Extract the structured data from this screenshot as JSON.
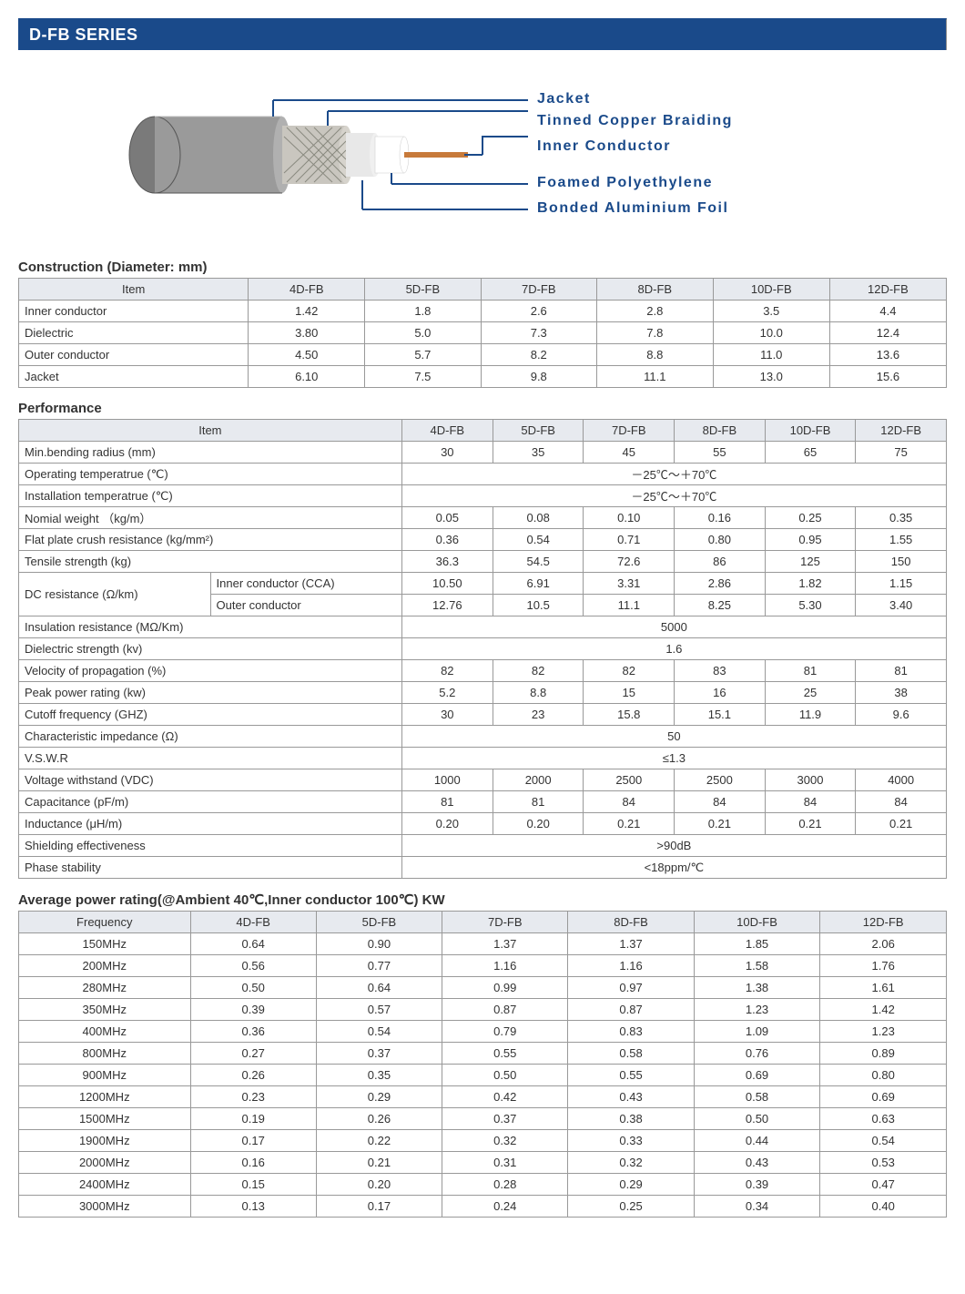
{
  "banner": "D-FB SERIES",
  "diagram": {
    "labels": {
      "jacket": "Jacket",
      "braid": "Tinned Copper Braiding",
      "inner": "Inner Conductor",
      "foam": "Foamed Polyethylene",
      "foil": "Bonded Aluminium Foil"
    },
    "colors": {
      "jacket_outer": "#9a9a9a",
      "jacket_face": "#7a7a7a",
      "braid": "#c9c6bf",
      "foil": "#e8e8e8",
      "foam": "#ffffff",
      "conductor": "#c77a3a",
      "label": "#1a4a8a"
    }
  },
  "construction": {
    "title": "Construction (Diameter: mm)",
    "header": [
      "Item",
      "4D-FB",
      "5D-FB",
      "7D-FB",
      "8D-FB",
      "10D-FB",
      "12D-FB"
    ],
    "rows": [
      {
        "item": "Inner conductor",
        "v": [
          "1.42",
          "1.8",
          "2.6",
          "2.8",
          "3.5",
          "4.4"
        ]
      },
      {
        "item": "Dielectric",
        "v": [
          "3.80",
          "5.0",
          "7.3",
          "7.8",
          "10.0",
          "12.4"
        ]
      },
      {
        "item": "Outer conductor",
        "v": [
          "4.50",
          "5.7",
          "8.2",
          "8.8",
          "11.0",
          "13.6"
        ]
      },
      {
        "item": "Jacket",
        "v": [
          "6.10",
          "7.5",
          "9.8",
          "11.1",
          "13.0",
          "15.6"
        ]
      }
    ]
  },
  "performance": {
    "title": "Performance",
    "header": [
      "Item",
      "4D-FB",
      "5D-FB",
      "7D-FB",
      "8D-FB",
      "10D-FB",
      "12D-FB"
    ],
    "rows": [
      {
        "item": "Min.bending radius (mm)",
        "sub": "",
        "v": [
          "30",
          "35",
          "45",
          "55",
          "65",
          "75"
        ]
      },
      {
        "item": "Operating temperatrue (℃)",
        "sub": "",
        "span": "－25℃～＋70℃"
      },
      {
        "item": "Installation temperatrue (℃)",
        "sub": "",
        "span": "－25℃～＋70℃"
      },
      {
        "item": "Nomial weight （kg/m）",
        "sub": "",
        "v": [
          "0.05",
          "0.08",
          "0.10",
          "0.16",
          "0.25",
          "0.35"
        ]
      },
      {
        "item": "Flat plate crush resistance (kg/mm²)",
        "sub": "",
        "v": [
          "0.36",
          "0.54",
          "0.71",
          "0.80",
          "0.95",
          "1.55"
        ]
      },
      {
        "item": "Tensile strength (kg)",
        "sub": "",
        "v": [
          "36.3",
          "54.5",
          "72.6",
          "86",
          "125",
          "150"
        ]
      },
      {
        "item": "DC resistance (Ω/km)",
        "sub": "Inner conductor (CCA)",
        "v": [
          "10.50",
          "6.91",
          "3.31",
          "2.86",
          "1.82",
          "1.15"
        ]
      },
      {
        "item": "",
        "sub": "Outer conductor",
        "v": [
          "12.76",
          "10.5",
          "11.1",
          "8.25",
          "5.30",
          "3.40"
        ]
      },
      {
        "item": "Insulation resistance (MΩ/Km)",
        "sub": "",
        "span": "5000"
      },
      {
        "item": "Dielectric strength (kv)",
        "sub": "",
        "span": "1.6"
      },
      {
        "item": "Velocity of propagation (%)",
        "sub": "",
        "v": [
          "82",
          "82",
          "82",
          "83",
          "81",
          "81"
        ]
      },
      {
        "item": "Peak power rating (kw)",
        "sub": "",
        "v": [
          "5.2",
          "8.8",
          "15",
          "16",
          "25",
          "38"
        ]
      },
      {
        "item": "Cutoff frequency (GHZ)",
        "sub": "",
        "v": [
          "30",
          "23",
          "15.8",
          "15.1",
          "11.9",
          "9.6"
        ]
      },
      {
        "item": "Characteristic impedance (Ω)",
        "sub": "",
        "span": "50"
      },
      {
        "item": "V.S.W.R",
        "sub": "",
        "span": "≤1.3"
      },
      {
        "item": "Voltage withstand (VDC)",
        "sub": "",
        "v": [
          "1000",
          "2000",
          "2500",
          "2500",
          "3000",
          "4000"
        ]
      },
      {
        "item": "Capacitance (pF/m)",
        "sub": "",
        "v": [
          "81",
          "81",
          "84",
          "84",
          "84",
          "84"
        ]
      },
      {
        "item": "Inductance (μH/m)",
        "sub": "",
        "v": [
          "0.20",
          "0.20",
          "0.21",
          "0.21",
          "0.21",
          "0.21"
        ]
      },
      {
        "item": "Shielding effectiveness",
        "sub": "",
        "span": ">90dB"
      },
      {
        "item": "Phase stability",
        "sub": "",
        "span": "<18ppm/℃"
      }
    ]
  },
  "power": {
    "title": "Average power rating(@Ambient 40℃,Inner conductor 100℃) KW",
    "header": [
      "Frequency",
      "4D-FB",
      "5D-FB",
      "7D-FB",
      "8D-FB",
      "10D-FB",
      "12D-FB"
    ],
    "rows": [
      {
        "f": "150MHz",
        "v": [
          "0.64",
          "0.90",
          "1.37",
          "1.37",
          "1.85",
          "2.06"
        ]
      },
      {
        "f": "200MHz",
        "v": [
          "0.56",
          "0.77",
          "1.16",
          "1.16",
          "1.58",
          "1.76"
        ]
      },
      {
        "f": "280MHz",
        "v": [
          "0.50",
          "0.64",
          "0.99",
          "0.97",
          "1.38",
          "1.61"
        ]
      },
      {
        "f": "350MHz",
        "v": [
          "0.39",
          "0.57",
          "0.87",
          "0.87",
          "1.23",
          "1.42"
        ]
      },
      {
        "f": "400MHz",
        "v": [
          "0.36",
          "0.54",
          "0.79",
          "0.83",
          "1.09",
          "1.23"
        ]
      },
      {
        "f": "800MHz",
        "v": [
          "0.27",
          "0.37",
          "0.55",
          "0.58",
          "0.76",
          "0.89"
        ]
      },
      {
        "f": "900MHz",
        "v": [
          "0.26",
          "0.35",
          "0.50",
          "0.55",
          "0.69",
          "0.80"
        ]
      },
      {
        "f": "1200MHz",
        "v": [
          "0.23",
          "0.29",
          "0.42",
          "0.43",
          "0.58",
          "0.69"
        ]
      },
      {
        "f": "1500MHz",
        "v": [
          "0.19",
          "0.26",
          "0.37",
          "0.38",
          "0.50",
          "0.63"
        ]
      },
      {
        "f": "1900MHz",
        "v": [
          "0.17",
          "0.22",
          "0.32",
          "0.33",
          "0.44",
          "0.54"
        ]
      },
      {
        "f": "2000MHz",
        "v": [
          "0.16",
          "0.21",
          "0.31",
          "0.32",
          "0.43",
          "0.53"
        ]
      },
      {
        "f": "2400MHz",
        "v": [
          "0.15",
          "0.20",
          "0.28",
          "0.29",
          "0.39",
          "0.47"
        ]
      },
      {
        "f": "3000MHz",
        "v": [
          "0.13",
          "0.17",
          "0.24",
          "0.25",
          "0.34",
          "0.40"
        ]
      }
    ]
  }
}
